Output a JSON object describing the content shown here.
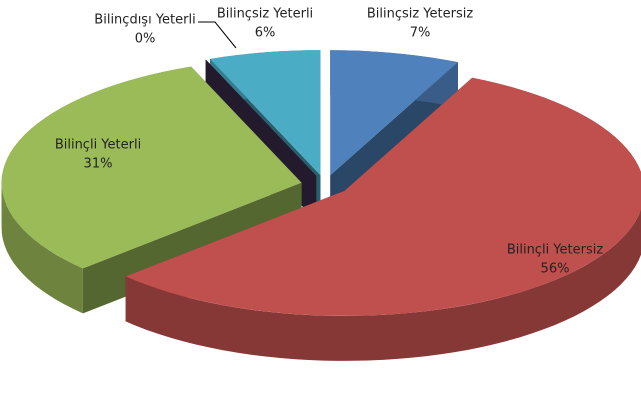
{
  "chart_data": {
    "type": "pie3d",
    "categories": [
      "Bilinçsiz Yetersiz",
      "Bilinçli Yetersiz",
      "Bilinçli Yeterli",
      "Bilinçdışı Yeterli",
      "Bilinçsiz Yeterli"
    ],
    "values": [
      7,
      56,
      31,
      0,
      6
    ],
    "value_labels": [
      "7%",
      "56%",
      "31%",
      "0%",
      "6%"
    ],
    "colors": [
      "#4f81bd",
      "#c0504d",
      "#9bbb59",
      "#403151",
      "#4bacc6"
    ]
  }
}
